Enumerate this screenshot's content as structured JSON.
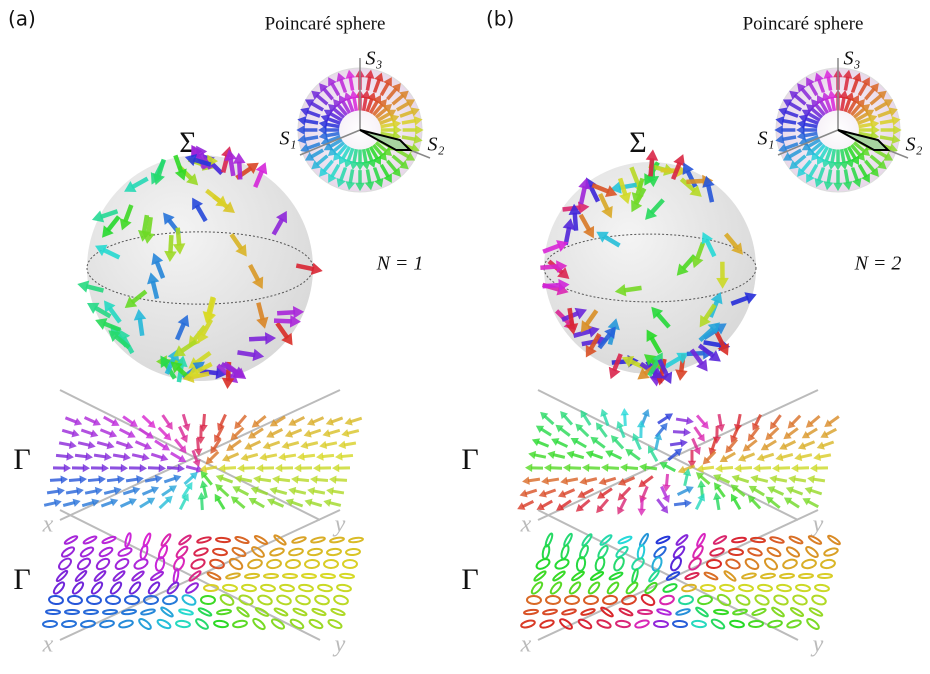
{
  "panels": [
    {
      "label": "(a)",
      "sphere_title": "Poincaré sphere",
      "axes": {
        "s3": "S₃",
        "s1": "S₁",
        "s2": "S₂"
      },
      "surface": "Σ",
      "charge": "N = 1",
      "planes": [
        {
          "label": "Γ",
          "x": "x",
          "y": "y"
        },
        {
          "label": "Γ",
          "x": "x",
          "y": "y"
        }
      ]
    },
    {
      "label": "(b)",
      "sphere_title": "Poincaré sphere",
      "axes": {
        "s3": "S₃",
        "s1": "S₁",
        "s2": "S₂"
      },
      "surface": "Σ",
      "charge": "N = 2",
      "planes": [
        {
          "label": "Γ",
          "x": "x",
          "y": "y"
        },
        {
          "label": "Γ",
          "x": "x",
          "y": "y"
        }
      ]
    }
  ]
}
